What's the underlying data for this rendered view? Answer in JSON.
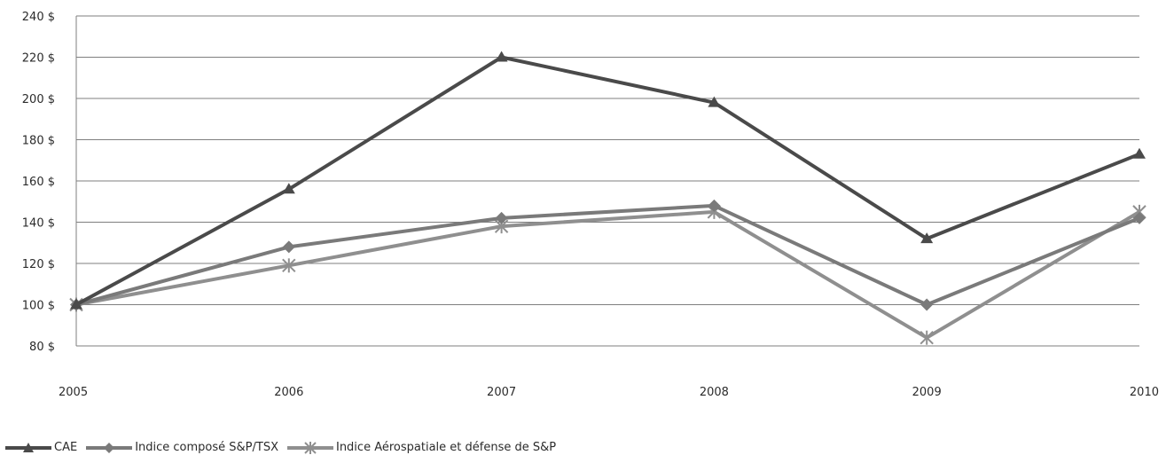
{
  "chart_data": {
    "type": "line",
    "categories": [
      "2005",
      "2006",
      "2007",
      "2008",
      "2009",
      "2010"
    ],
    "ylim": [
      80,
      240
    ],
    "y_ticks": [
      "80 $",
      "100 $",
      "120 $",
      "140 $",
      "160 $",
      "180 $",
      "200 $",
      "220 $",
      "240 $"
    ],
    "y_tick_values": [
      80,
      100,
      120,
      140,
      160,
      180,
      200,
      220,
      240
    ],
    "grid": "horizontal",
    "legend_position": "bottom-left",
    "series": [
      {
        "name": "CAE",
        "values": [
          100,
          156,
          220,
          198,
          132,
          173
        ],
        "color": "#4a4a4a",
        "marker": "triangle-icon"
      },
      {
        "name": "Indice composé S&P/TSX",
        "values": [
          100,
          128,
          142,
          148,
          100,
          142
        ],
        "color": "#7a7a7a",
        "marker": "diamond-icon"
      },
      {
        "name": "Indice Aérospatiale et défense de S&P",
        "values": [
          100,
          119,
          138,
          145,
          84,
          145
        ],
        "color": "#8f8f8f",
        "marker": "asterisk-icon"
      }
    ]
  }
}
